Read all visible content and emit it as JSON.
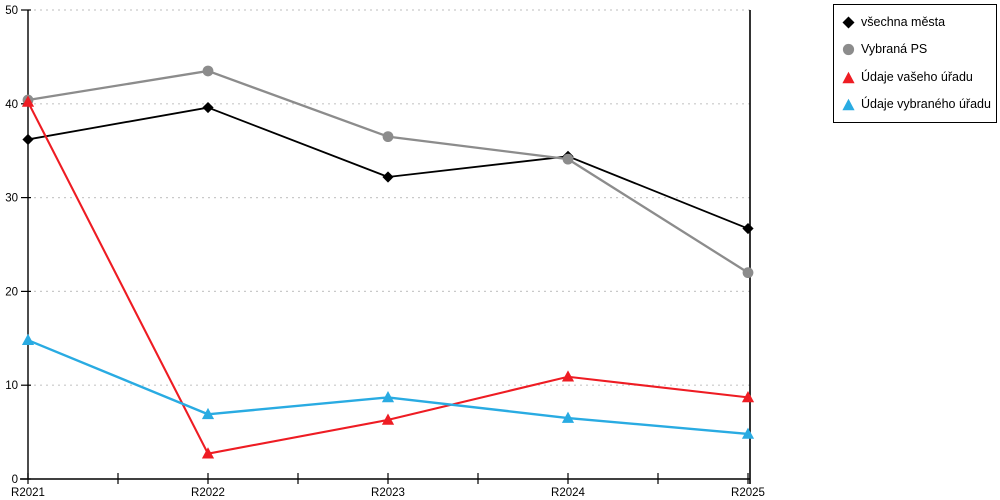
{
  "chart_data": {
    "type": "line",
    "title": "",
    "xlabel": "",
    "ylabel": "",
    "categories": [
      "R2021",
      "R2022",
      "R2023",
      "R2024",
      "R2025"
    ],
    "series": [
      {
        "name": "všechna města",
        "color": "#000000",
        "marker": "diamond",
        "values": [
          36.2,
          39.6,
          32.2,
          34.4,
          26.7
        ]
      },
      {
        "name": "Vybraná PS",
        "color": "#8c8c8c",
        "marker": "circle",
        "values": [
          40.4,
          43.5,
          36.5,
          34.1,
          22.0
        ]
      },
      {
        "name": "Údaje vašeho úřadu",
        "color": "#ee1c23",
        "marker": "triangle",
        "values": [
          40.2,
          2.7,
          6.3,
          10.9,
          8.7
        ]
      },
      {
        "name": "Údaje vybraného úřadu",
        "color": "#29abe2",
        "marker": "triangle",
        "values": [
          14.8,
          6.9,
          8.7,
          6.5,
          4.8
        ]
      }
    ],
    "ylim": [
      0,
      50
    ],
    "yticks": [
      0,
      10,
      20,
      30,
      40,
      50
    ],
    "grid": "horizontal-dashed",
    "grid_color": "#c9c9c9",
    "axis_color": "#000000",
    "text_color": "#000000",
    "legend_position": "outside-top-right"
  }
}
